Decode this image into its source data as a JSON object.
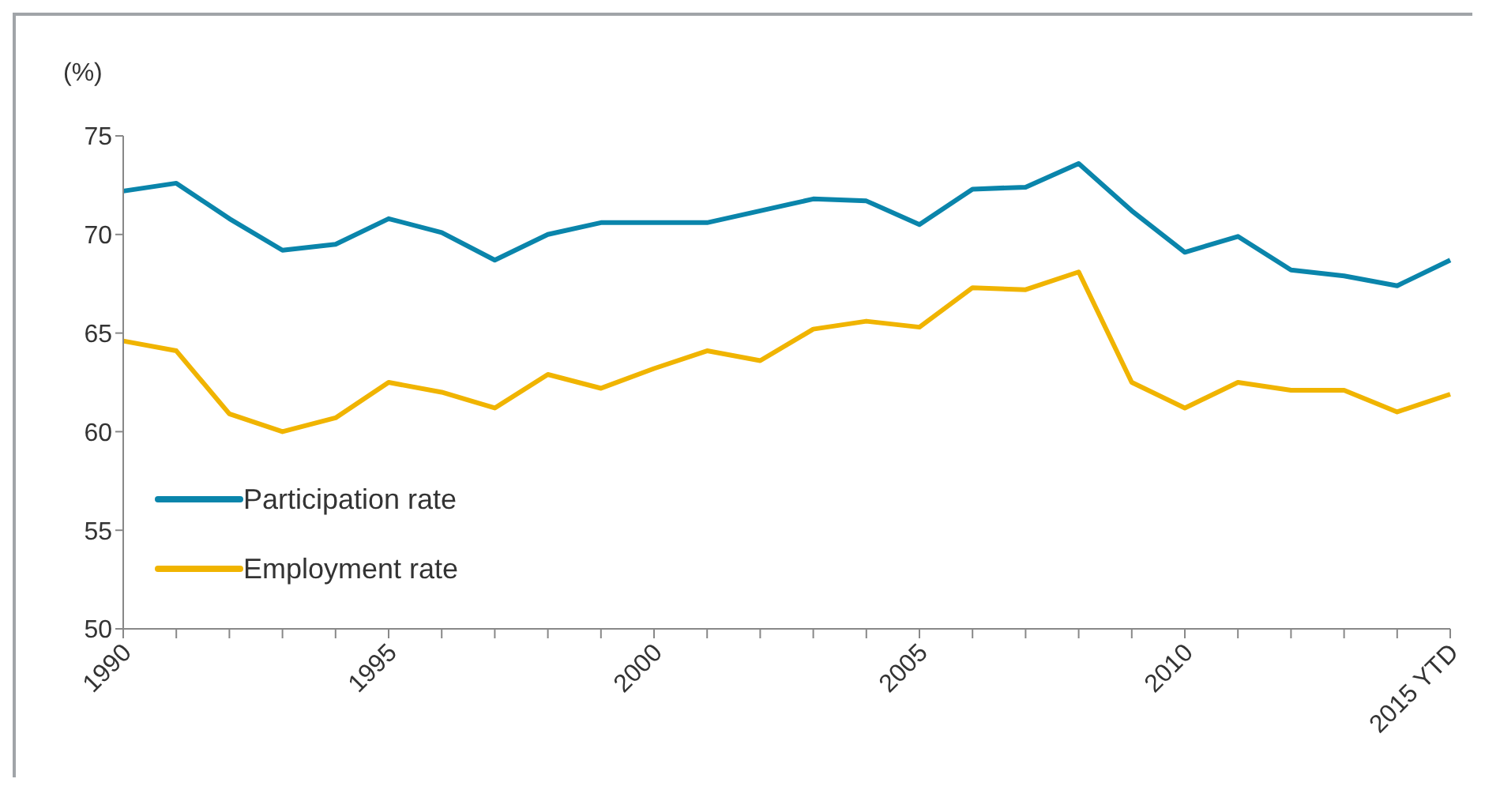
{
  "chart_data": {
    "type": "line",
    "ylabel": "(%)",
    "categories": [
      "1990",
      null,
      null,
      null,
      null,
      "1995",
      null,
      null,
      null,
      null,
      "2000",
      null,
      null,
      null,
      null,
      "2005",
      null,
      null,
      null,
      null,
      "2010",
      null,
      null,
      null,
      null,
      "2015 YTD"
    ],
    "series": [
      {
        "name": "Participation rate",
        "color": "#0a85ab",
        "values": [
          72.2,
          72.6,
          70.8,
          69.2,
          69.5,
          70.8,
          70.1,
          68.7,
          70.0,
          70.6,
          70.6,
          70.6,
          71.2,
          71.8,
          71.7,
          70.5,
          72.3,
          72.4,
          73.6,
          71.2,
          69.1,
          69.9,
          68.2,
          67.9,
          67.4,
          68.7
        ]
      },
      {
        "name": "Employment rate",
        "color": "#f0b400",
        "values": [
          64.6,
          64.1,
          60.9,
          60.0,
          60.7,
          62.5,
          62.0,
          61.2,
          62.9,
          62.2,
          63.2,
          64.1,
          63.6,
          65.2,
          65.6,
          65.3,
          67.3,
          67.2,
          68.1,
          62.5,
          61.2,
          62.5,
          62.1,
          62.1,
          61.0,
          61.9
        ]
      }
    ],
    "ylim": [
      50,
      75
    ],
    "yticks": [
      50,
      55,
      60,
      65,
      70,
      75
    ],
    "grid": false,
    "legend": "bottom left",
    "marker": "none",
    "line_style": "solid"
  }
}
